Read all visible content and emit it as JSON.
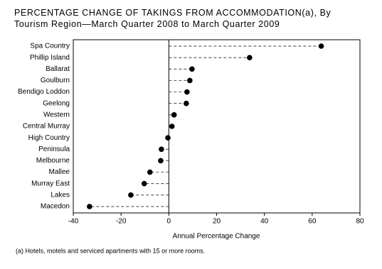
{
  "chart_data": {
    "type": "dot",
    "title": [
      "PERCENTAGE CHANGE OF TAKINGS FROM ACCOMMODATION(a), By",
      "Tourism Region—March Quarter 2008 to March Quarter 2009"
    ],
    "categories": [
      "Spa Country",
      "Phillip Island",
      "Ballarat",
      "Goulburn",
      "Bendigo Loddon",
      "Geelong",
      "Western",
      "Central Murray",
      "High Country",
      "Peninsula",
      "Melbourne",
      "Mallee",
      "Murray East",
      "Lakes",
      "Macedon"
    ],
    "values": [
      63.8,
      33.8,
      9.7,
      8.8,
      7.6,
      7.3,
      2.2,
      1.3,
      -0.4,
      -3.1,
      -3.4,
      -7.9,
      -10.3,
      -15.9,
      -33.2
    ],
    "color": "#000000",
    "xlim": [
      -40,
      80
    ],
    "xticks": [
      -40,
      -20,
      0,
      20,
      40,
      60,
      80
    ],
    "xlabel": "Annual Percentage Change",
    "footnote": "(a) Hotels, motels and serviced apartments with 15 or more rooms."
  }
}
